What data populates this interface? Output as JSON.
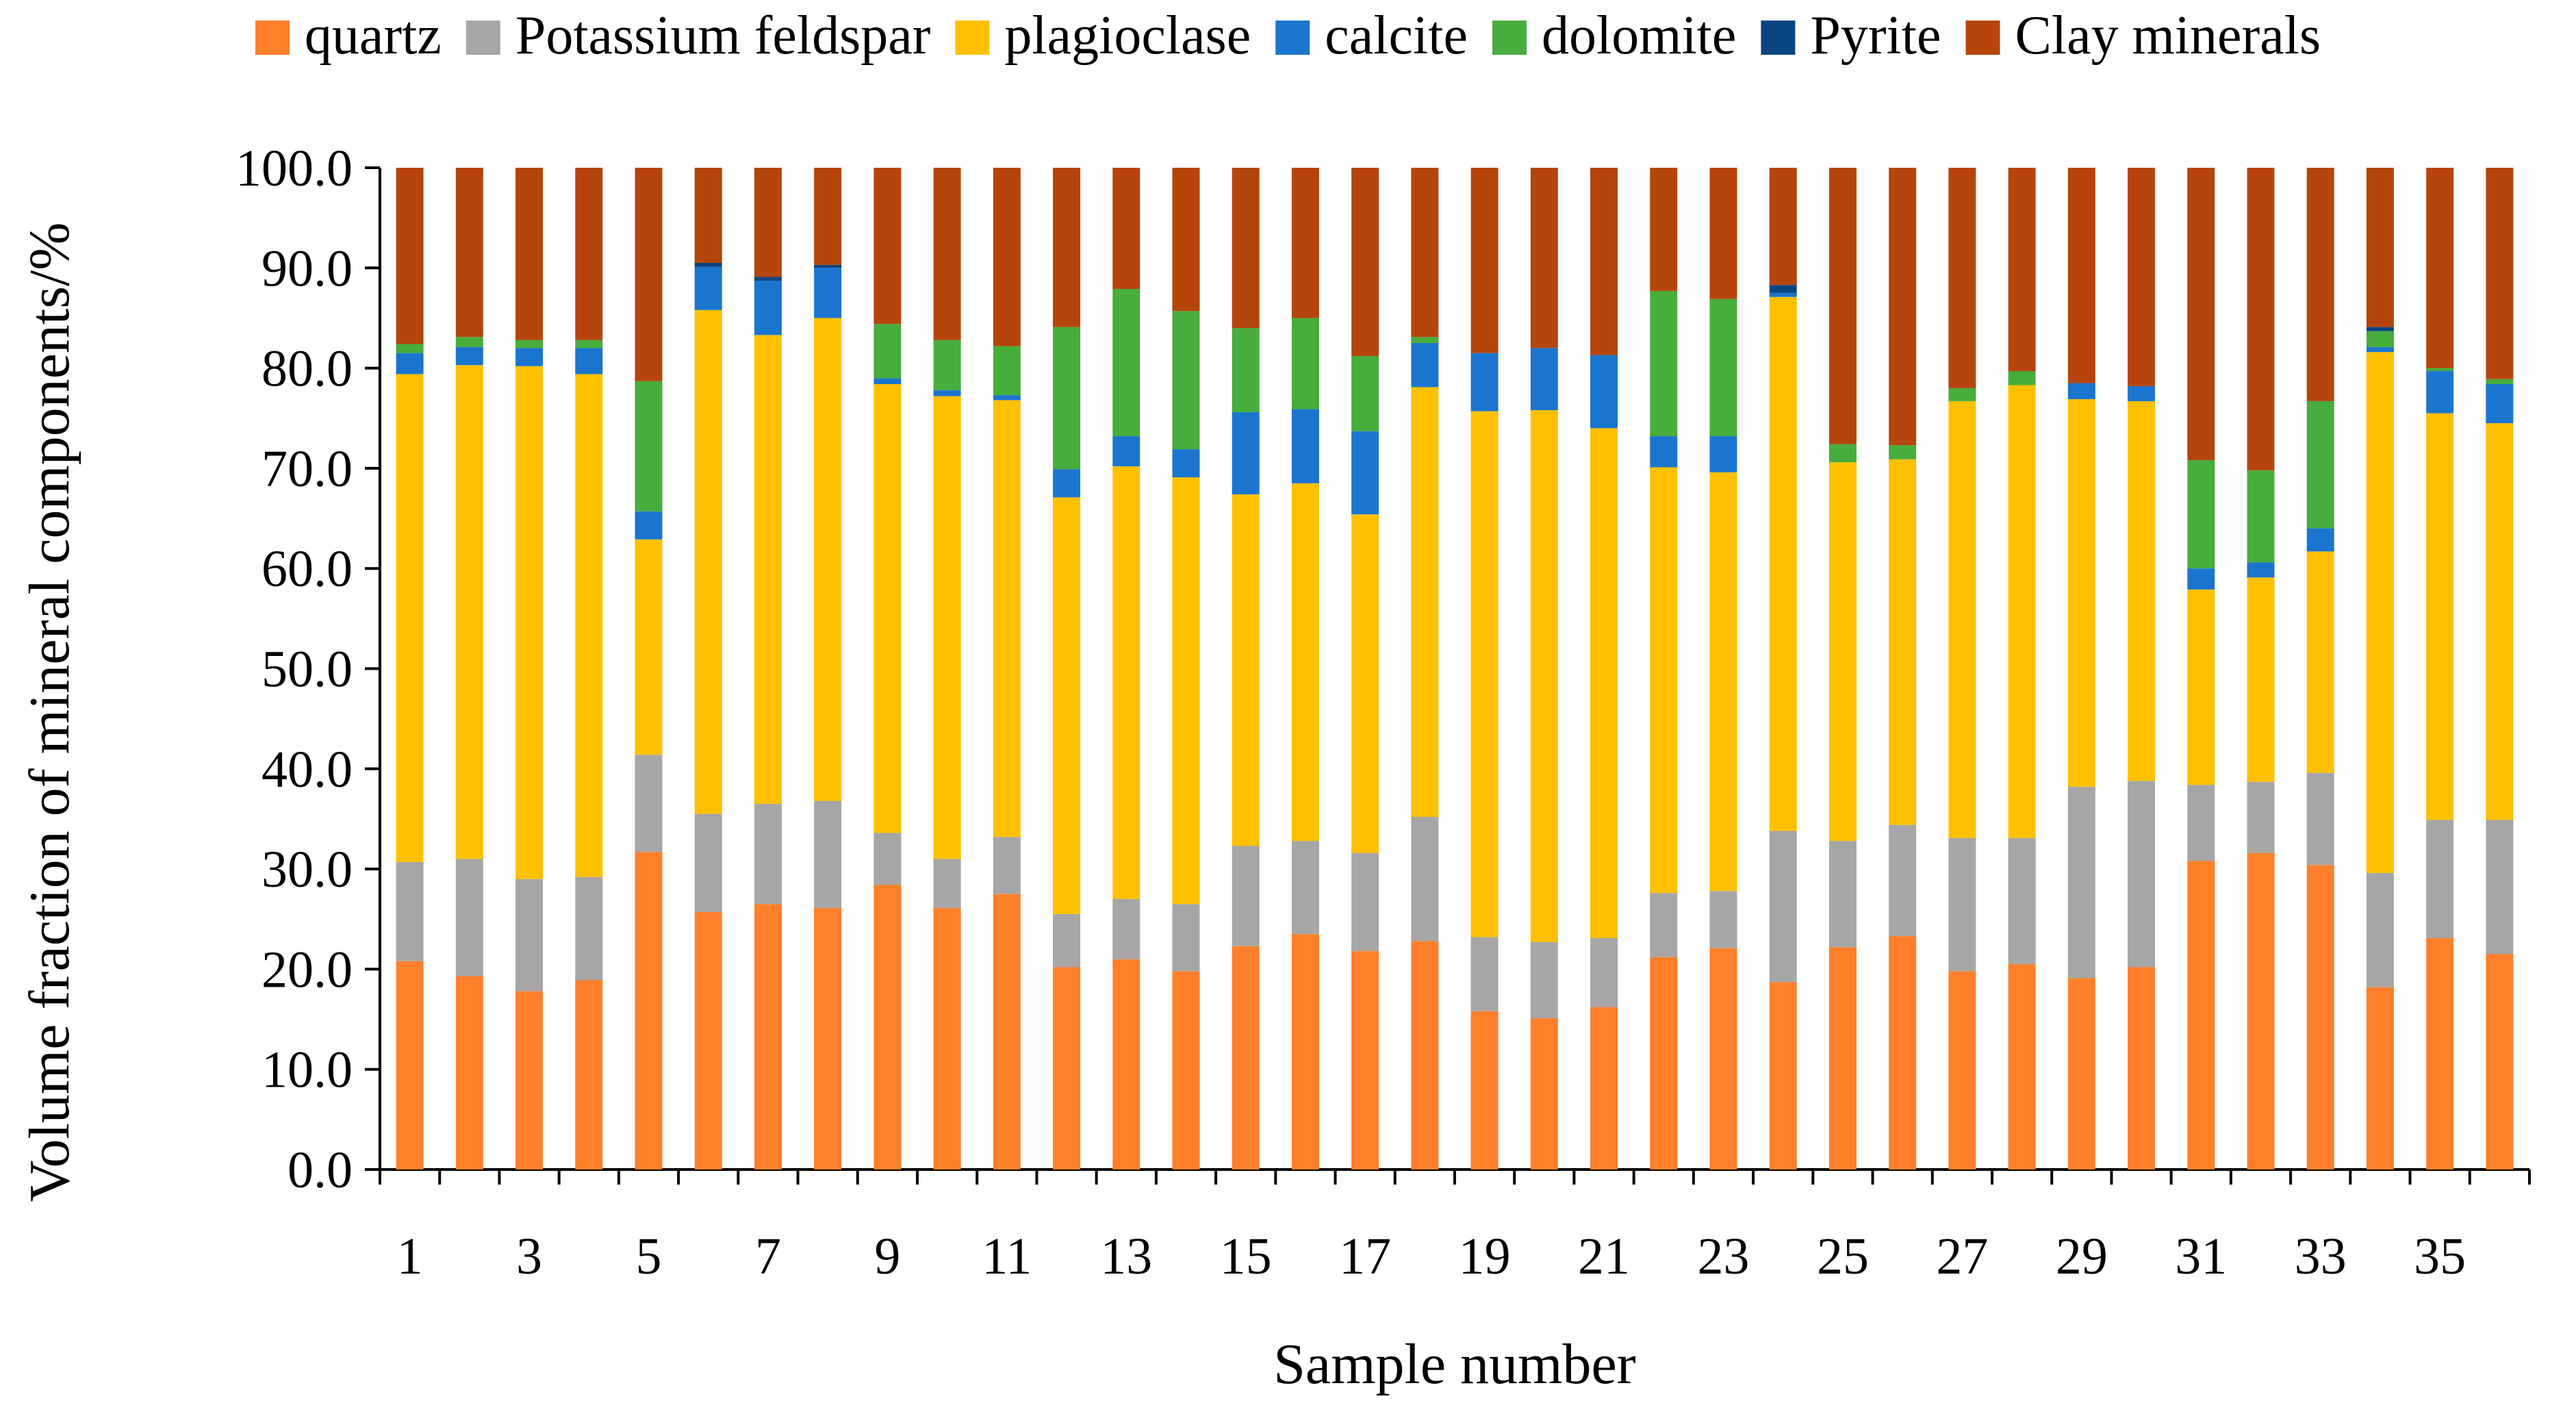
{
  "chart_data": {
    "type": "stacked-bar",
    "title": "",
    "xlabel": "Sample number",
    "ylabel": "Volume fraction of mineral components/%",
    "ylim": [
      0,
      100
    ],
    "yticks": [
      "0.0",
      "10.0",
      "20.0",
      "30.0",
      "40.0",
      "50.0",
      "60.0",
      "70.0",
      "80.0",
      "90.0",
      "100.0"
    ],
    "categories": [
      "1",
      "2",
      "3",
      "4",
      "5",
      "6",
      "7",
      "8",
      "9",
      "10",
      "11",
      "12",
      "13",
      "14",
      "15",
      "16",
      "17",
      "18",
      "19",
      "20",
      "21",
      "22",
      "23",
      "24",
      "25",
      "26",
      "27",
      "28",
      "29",
      "30",
      "31",
      "32",
      "33",
      "34",
      "35",
      "36"
    ],
    "xtick_labels": [
      "1",
      "",
      "3",
      "",
      "5",
      "",
      "7",
      "",
      "9",
      "",
      "11",
      "",
      "13",
      "",
      "15",
      "",
      "17",
      "",
      "19",
      "",
      "21",
      "",
      "23",
      "",
      "25",
      "",
      "27",
      "",
      "29",
      "",
      "31",
      "",
      "33",
      "",
      "35",
      ""
    ],
    "legend_position": "top",
    "series": [
      {
        "name": "quartz",
        "color": "#ff7f2a",
        "values": [
          20.8,
          19.3,
          17.8,
          18.9,
          31.7,
          25.7,
          26.5,
          26.1,
          28.4,
          26.1,
          27.5,
          20.2,
          21.0,
          19.8,
          22.3,
          23.5,
          21.8,
          22.8,
          15.8,
          15.1,
          16.2,
          21.2,
          22.1,
          18.7,
          22.2,
          23.3,
          19.8,
          20.5,
          19.1,
          20.2,
          30.8,
          31.6,
          30.4,
          18.2,
          23.1,
          21.5
        ]
      },
      {
        "name": "Potassium feldspar",
        "color": "#a6a6a6",
        "values": [
          9.9,
          11.7,
          11.2,
          10.3,
          9.7,
          9.8,
          10.0,
          10.7,
          5.2,
          4.9,
          5.7,
          5.3,
          6.0,
          6.7,
          10.0,
          9.3,
          9.8,
          12.4,
          7.4,
          7.6,
          6.9,
          6.4,
          5.7,
          15.1,
          10.6,
          11.1,
          13.3,
          12.6,
          19.1,
          18.6,
          7.6,
          7.1,
          9.2,
          11.4,
          11.8,
          13.4
        ]
      },
      {
        "name": "plagioclase",
        "color": "#ffc000",
        "values": [
          48.7,
          49.3,
          51.2,
          50.2,
          21.5,
          50.3,
          46.8,
          48.2,
          44.8,
          46.2,
          43.6,
          41.6,
          43.2,
          42.6,
          35.1,
          35.7,
          33.8,
          42.9,
          52.5,
          53.1,
          50.9,
          42.5,
          41.8,
          53.3,
          37.8,
          36.5,
          43.6,
          45.2,
          38.7,
          37.9,
          19.5,
          20.4,
          22.1,
          52.0,
          40.6,
          39.6
        ]
      },
      {
        "name": "calcite",
        "color": "#1a75cf",
        "values": [
          2.1,
          1.8,
          1.8,
          2.6,
          2.8,
          4.3,
          5.4,
          5.0,
          0.6,
          0.6,
          0.5,
          2.8,
          3.0,
          2.8,
          8.2,
          7.4,
          8.3,
          4.4,
          5.8,
          6.2,
          7.3,
          3.1,
          3.6,
          0.4,
          0.0,
          0.0,
          0.0,
          0.0,
          1.6,
          1.5,
          2.1,
          1.5,
          2.3,
          0.5,
          4.2,
          3.9
        ]
      },
      {
        "name": "dolomite",
        "color": "#47ad3d",
        "values": [
          0.9,
          1.0,
          0.8,
          0.8,
          13.0,
          0.0,
          0.0,
          0.0,
          5.4,
          5.0,
          4.9,
          14.2,
          14.7,
          13.8,
          8.4,
          9.1,
          7.5,
          0.6,
          0.0,
          0.0,
          0.0,
          14.5,
          13.7,
          0.0,
          1.8,
          1.4,
          1.3,
          1.4,
          0.0,
          0.0,
          10.8,
          9.2,
          12.7,
          1.6,
          0.3,
          0.5
        ]
      },
      {
        "name": "Pyrite",
        "color": "#0b4580",
        "values": [
          0.0,
          0.0,
          0.0,
          0.0,
          0.0,
          0.4,
          0.4,
          0.3,
          0.0,
          0.0,
          0.0,
          0.0,
          0.0,
          0.0,
          0.0,
          0.0,
          0.0,
          0.0,
          0.0,
          0.0,
          0.0,
          0.0,
          0.0,
          0.8,
          0.0,
          0.0,
          0.0,
          0.0,
          0.0,
          0.0,
          0.0,
          0.0,
          0.0,
          0.4,
          0.0,
          0.0
        ]
      },
      {
        "name": "Clay minerals",
        "color": "#b5450b",
        "values": [
          17.6,
          16.9,
          17.2,
          17.2,
          21.3,
          9.5,
          10.9,
          9.7,
          15.6,
          17.2,
          17.8,
          15.9,
          12.1,
          14.3,
          16.0,
          15.0,
          18.8,
          16.9,
          18.5,
          18.0,
          18.7,
          12.3,
          13.1,
          11.7,
          27.6,
          27.7,
          22.0,
          20.3,
          21.5,
          21.8,
          29.2,
          30.2,
          23.3,
          15.9,
          20.0,
          21.1
        ]
      }
    ]
  }
}
